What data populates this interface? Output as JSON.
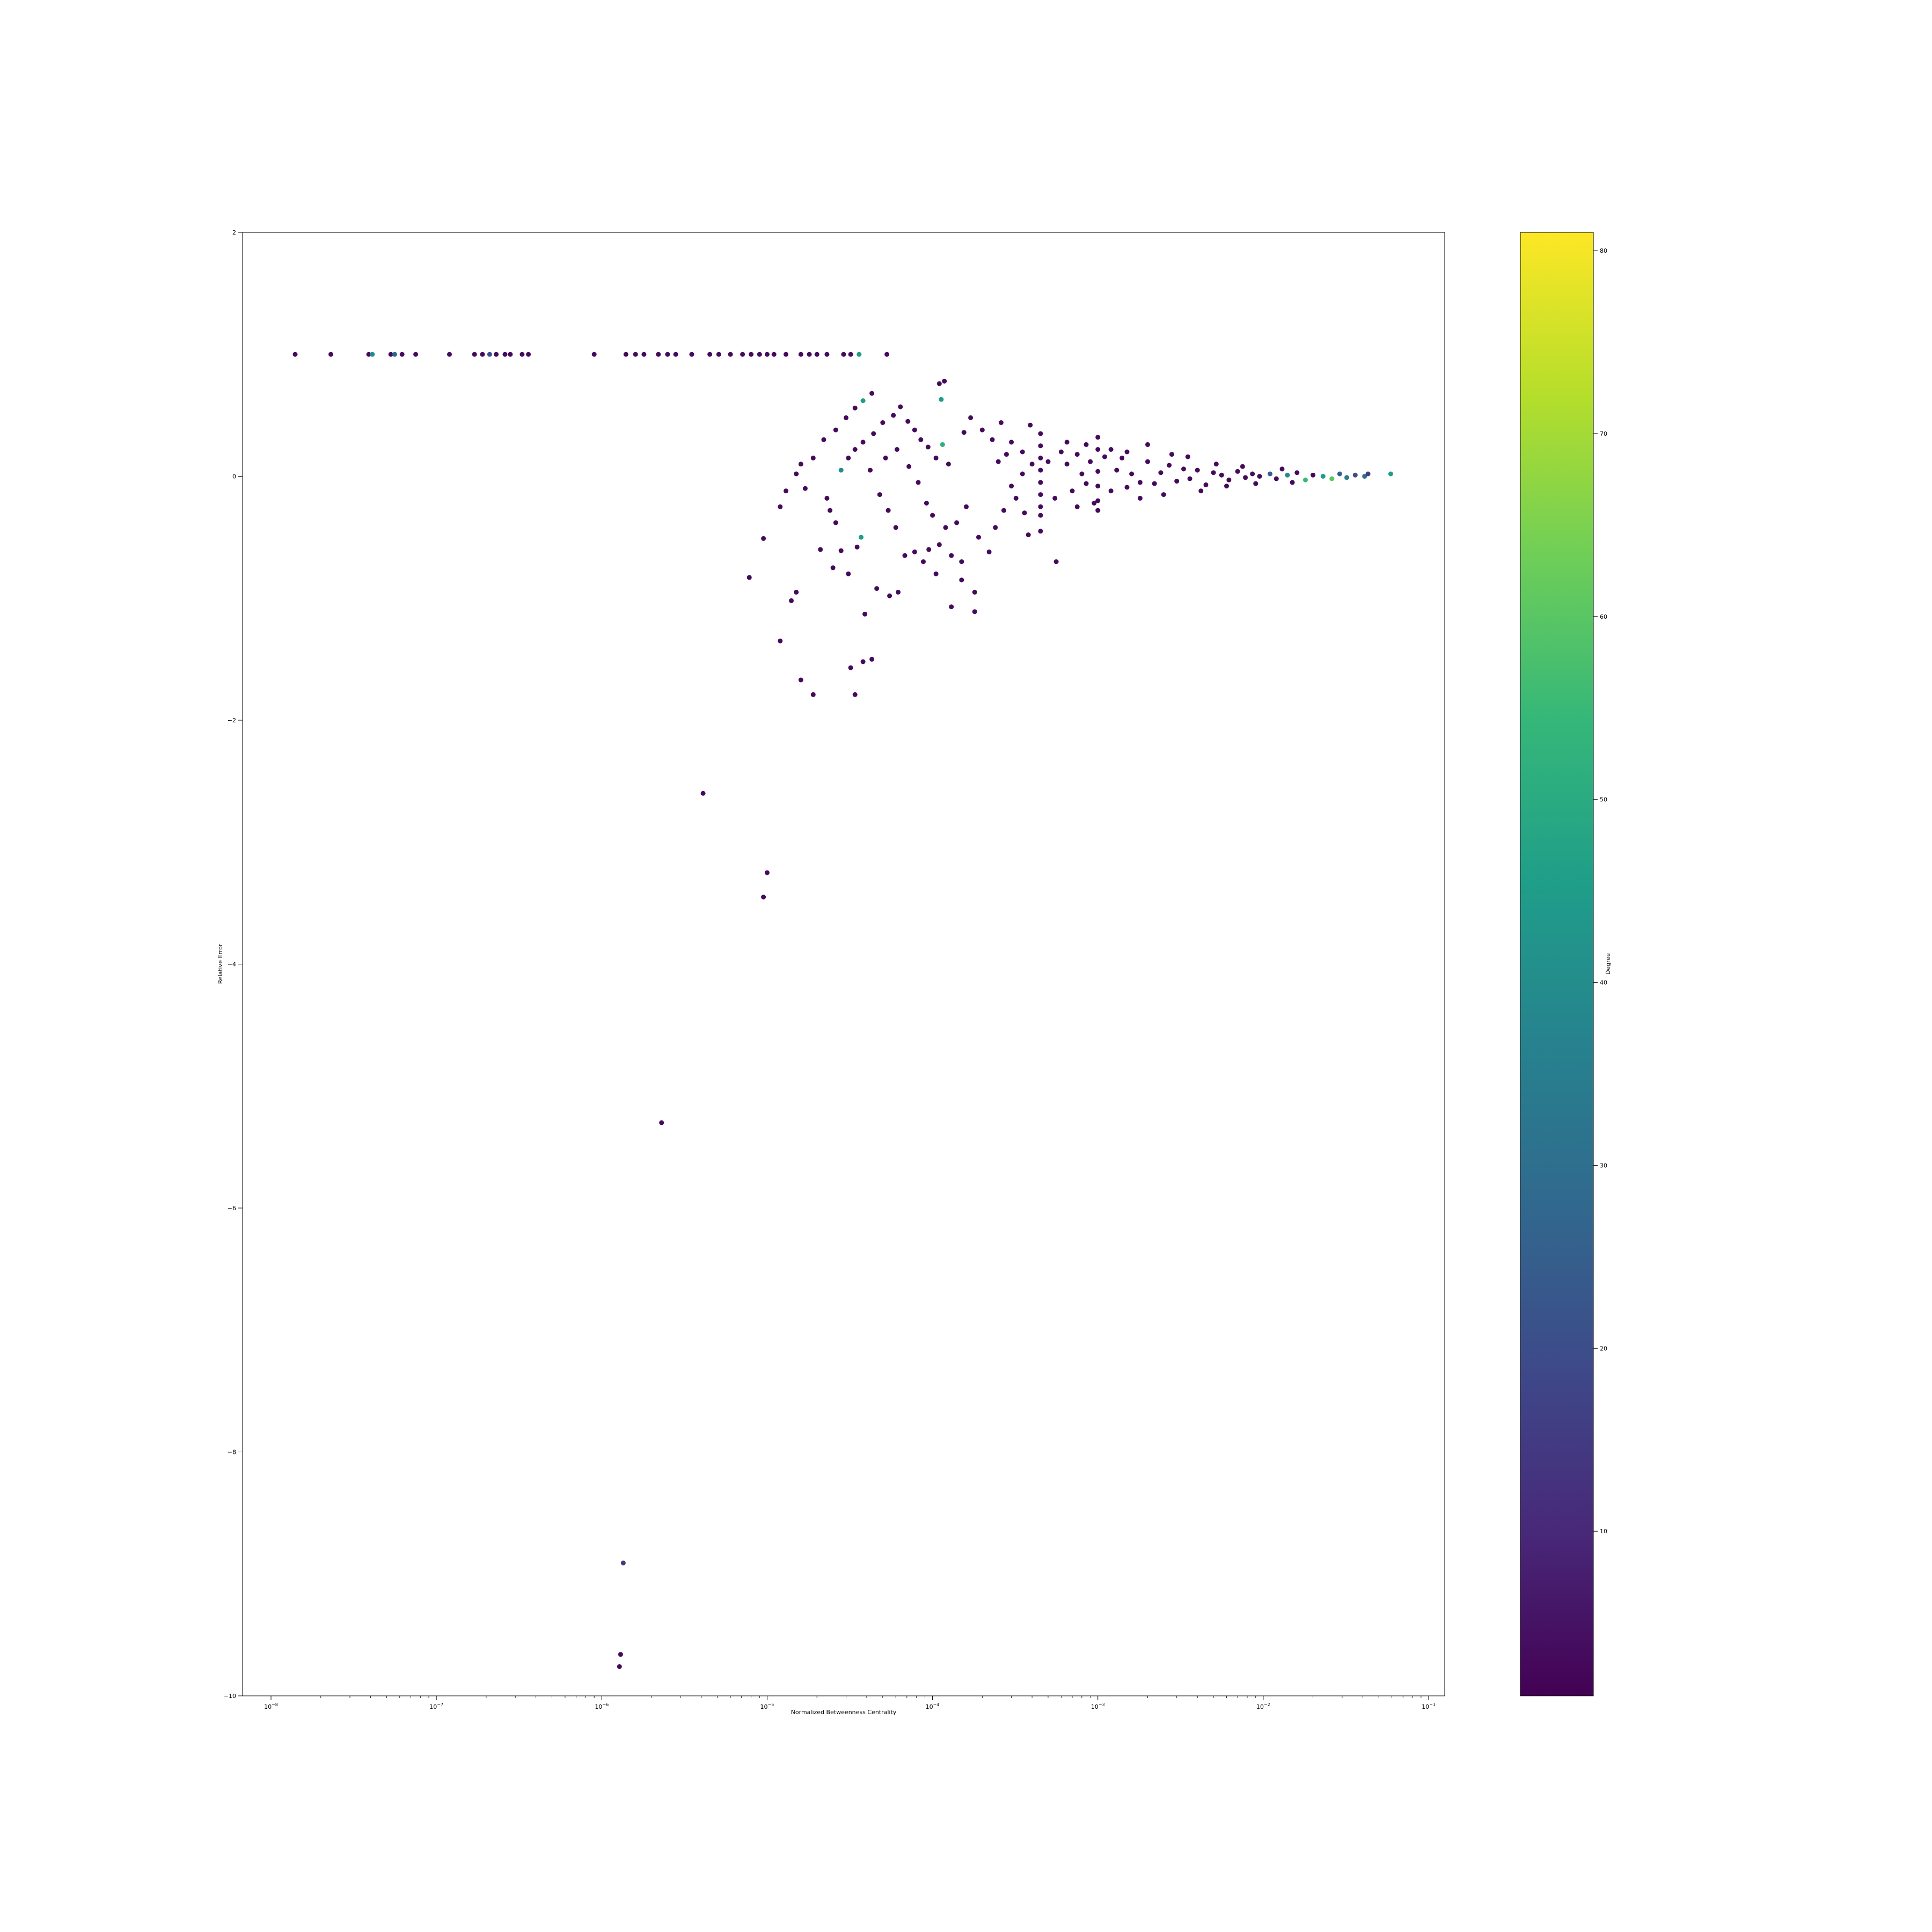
{
  "chart_data": {
    "type": "scatter",
    "title": "",
    "xlabel": "Normalized Betweenness Centrality",
    "ylabel": "Relative Error",
    "colorbar_label": "Degree",
    "x_scale": "log",
    "xlim": [
      1e-08,
      0.1
    ],
    "ylim": [
      -10,
      2
    ],
    "x_ticks": [
      {
        "value": 1e-08,
        "base": "10",
        "exp": "−8"
      },
      {
        "value": 1e-07,
        "base": "10",
        "exp": "−7"
      },
      {
        "value": 1e-06,
        "base": "10",
        "exp": "−6"
      },
      {
        "value": 1e-05,
        "base": "10",
        "exp": "−5"
      },
      {
        "value": 0.0001,
        "base": "10",
        "exp": "−4"
      },
      {
        "value": 0.001,
        "base": "10",
        "exp": "−3"
      },
      {
        "value": 0.01,
        "base": "10",
        "exp": "−2"
      },
      {
        "value": 0.1,
        "base": "10",
        "exp": "−1"
      }
    ],
    "y_ticks": [
      {
        "value": 2,
        "label": "2"
      },
      {
        "value": 0,
        "label": "0"
      },
      {
        "value": -2,
        "label": "−2"
      },
      {
        "value": -4,
        "label": "−4"
      },
      {
        "value": -6,
        "label": "−6"
      },
      {
        "value": -8,
        "label": "−8"
      },
      {
        "value": -10,
        "label": "−10"
      }
    ],
    "colorbar": {
      "range": [
        1,
        81
      ],
      "colormap": "viridis",
      "ticks": [
        {
          "value": 10,
          "label": "10"
        },
        {
          "value": 20,
          "label": "20"
        },
        {
          "value": 30,
          "label": "30"
        },
        {
          "value": 40,
          "label": "40"
        },
        {
          "value": 50,
          "label": "50"
        },
        {
          "value": 60,
          "label": "60"
        },
        {
          "value": 70,
          "label": "70"
        },
        {
          "value": 80,
          "label": "80"
        }
      ],
      "stops": [
        "#440154",
        "#482878",
        "#3e4989",
        "#31688e",
        "#26828e",
        "#1f9e89",
        "#35b779",
        "#6ece58",
        "#b5de2b",
        "#fde725"
      ]
    },
    "point_fill_hint": "purple-dominant, a few teal/green high-degree points",
    "points": [
      [
        1.4e-08,
        1.0,
        3
      ],
      [
        2.3e-08,
        1.0,
        3
      ],
      [
        3.9e-08,
        1.0,
        3
      ],
      [
        4.1e-08,
        1.0,
        40
      ],
      [
        5.3e-08,
        1.0,
        3
      ],
      [
        5.6e-08,
        1.0,
        28
      ],
      [
        6.2e-08,
        1.0,
        3
      ],
      [
        7.5e-08,
        1.0,
        3
      ],
      [
        1.2e-07,
        1.0,
        3
      ],
      [
        1.7e-07,
        1.0,
        3
      ],
      [
        1.9e-07,
        1.0,
        3
      ],
      [
        2.1e-07,
        1.0,
        20
      ],
      [
        2.3e-07,
        1.0,
        3
      ],
      [
        2.6e-07,
        1.0,
        3
      ],
      [
        2.8e-07,
        1.0,
        3
      ],
      [
        3.3e-07,
        1.0,
        3
      ],
      [
        3.6e-07,
        1.0,
        3
      ],
      [
        9e-07,
        1.0,
        3
      ],
      [
        1.4e-06,
        1.0,
        3
      ],
      [
        1.6e-06,
        1.0,
        3
      ],
      [
        1.8e-06,
        1.0,
        3
      ],
      [
        2.2e-06,
        1.0,
        3
      ],
      [
        2.5e-06,
        1.0,
        3
      ],
      [
        2.8e-06,
        1.0,
        3
      ],
      [
        3.5e-06,
        1.0,
        3
      ],
      [
        4.5e-06,
        1.0,
        3
      ],
      [
        5.1e-06,
        1.0,
        3
      ],
      [
        6e-06,
        1.0,
        3
      ],
      [
        7.1e-06,
        1.0,
        3
      ],
      [
        8e-06,
        1.0,
        3
      ],
      [
        9e-06,
        1.0,
        3
      ],
      [
        1e-05,
        1.0,
        3
      ],
      [
        1.1e-05,
        1.0,
        3
      ],
      [
        1.3e-05,
        1.0,
        3
      ],
      [
        1.6e-05,
        1.0,
        3
      ],
      [
        1.8e-05,
        1.0,
        3
      ],
      [
        2e-05,
        1.0,
        3
      ],
      [
        2.3e-05,
        1.0,
        3
      ],
      [
        2.9e-05,
        1.0,
        3
      ],
      [
        3.2e-05,
        1.0,
        3
      ],
      [
        3.6e-05,
        1.0,
        45
      ],
      [
        5.3e-05,
        1.0,
        3
      ],
      [
        2.6e-05,
        0.38,
        3
      ],
      [
        3e-05,
        0.48,
        3
      ],
      [
        3.4e-05,
        0.56,
        3
      ],
      [
        3.8e-05,
        0.62,
        45
      ],
      [
        4.3e-05,
        0.68,
        3
      ],
      [
        2.2e-05,
        0.3,
        3
      ],
      [
        1.9e-05,
        0.15,
        3
      ],
      [
        1.6e-05,
        0.1,
        3
      ],
      [
        1.5e-05,
        0.02,
        3
      ],
      [
        1.3e-05,
        -0.12,
        3
      ],
      [
        1.2e-05,
        -0.25,
        3
      ],
      [
        9.5e-06,
        -0.51,
        3
      ],
      [
        7.8e-06,
        -0.83,
        3
      ],
      [
        1.5e-05,
        -0.95,
        3
      ],
      [
        1.4e-05,
        -1.02,
        3
      ],
      [
        1.2e-05,
        -1.35,
        3
      ],
      [
        1.6e-05,
        -1.67,
        3
      ],
      [
        1.9e-05,
        -1.79,
        3
      ],
      [
        3.4e-05,
        -1.79,
        3
      ],
      [
        3.2e-05,
        -1.57,
        3
      ],
      [
        3.8e-05,
        -1.52,
        3
      ],
      [
        4.3e-05,
        -1.5,
        3
      ],
      [
        3.9e-05,
        -1.13,
        3
      ],
      [
        4.6e-05,
        -0.92,
        3
      ],
      [
        3.7e-05,
        -0.5,
        45
      ],
      [
        3.5e-05,
        -0.58,
        3
      ],
      [
        3.1e-05,
        -0.8,
        3
      ],
      [
        2.8e-05,
        -0.61,
        3
      ],
      [
        2.6e-05,
        -0.38,
        3
      ],
      [
        2.3e-05,
        -0.18,
        3
      ],
      [
        2.8e-05,
        0.05,
        40
      ],
      [
        3.1e-05,
        0.15,
        3
      ],
      [
        3.4e-05,
        0.22,
        3
      ],
      [
        3.8e-05,
        0.28,
        3
      ],
      [
        4.4e-05,
        0.35,
        3
      ],
      [
        5e-05,
        0.44,
        3
      ],
      [
        5.8e-05,
        0.5,
        3
      ],
      [
        6.4e-05,
        0.57,
        3
      ],
      [
        7.1e-05,
        0.45,
        3
      ],
      [
        7.8e-05,
        0.38,
        3
      ],
      [
        8.5e-05,
        0.3,
        3
      ],
      [
        9.4e-05,
        0.24,
        3
      ],
      [
        0.000105,
        0.15,
        3
      ],
      [
        0.000115,
        0.26,
        52
      ],
      [
        0.000125,
        0.1,
        3
      ],
      [
        0.00011,
        0.76,
        3
      ],
      [
        0.000118,
        0.78,
        3
      ],
      [
        0.000113,
        0.63,
        45
      ],
      [
        0.00013,
        -1.07,
        3
      ],
      [
        0.00018,
        -1.11,
        3
      ],
      [
        0.00018,
        -0.95,
        3
      ],
      [
        0.00015,
        -0.85,
        3
      ],
      [
        0.00015,
        -0.7,
        3
      ],
      [
        0.00013,
        -0.65,
        3
      ],
      [
        0.00011,
        -0.56,
        3
      ],
      [
        9.5e-05,
        -0.6,
        3
      ],
      [
        7.8e-05,
        -0.62,
        3
      ],
      [
        6.8e-05,
        -0.65,
        3
      ],
      [
        6e-05,
        -0.42,
        3
      ],
      [
        5.4e-05,
        -0.28,
        3
      ],
      [
        4.8e-05,
        -0.15,
        3
      ],
      [
        4.2e-05,
        0.05,
        3
      ],
      [
        5.2e-05,
        0.15,
        3
      ],
      [
        6.1e-05,
        0.22,
        3
      ],
      [
        7.2e-05,
        0.08,
        3
      ],
      [
        8.2e-05,
        -0.05,
        3
      ],
      [
        9.2e-05,
        -0.22,
        3
      ],
      [
        0.0001,
        -0.32,
        3
      ],
      [
        0.00012,
        -0.42,
        3
      ],
      [
        0.00014,
        -0.38,
        3
      ],
      [
        0.00016,
        -0.25,
        3
      ],
      [
        0.00019,
        -0.5,
        3
      ],
      [
        0.00022,
        -0.62,
        3
      ],
      [
        0.00024,
        -0.42,
        3
      ],
      [
        0.0002,
        0.38,
        3
      ],
      [
        0.00023,
        0.3,
        3
      ],
      [
        0.00026,
        0.44,
        3
      ],
      [
        0.00028,
        0.18,
        3
      ],
      [
        0.0003,
        -0.08,
        3
      ],
      [
        0.00032,
        -0.18,
        3
      ],
      [
        0.00035,
        0.02,
        3
      ],
      [
        0.00038,
        -0.48,
        3
      ],
      [
        0.00056,
        -0.7,
        3
      ],
      [
        0.0006,
        0.2,
        3
      ],
      [
        0.00065,
        0.1,
        3
      ],
      [
        0.0007,
        -0.12,
        3
      ],
      [
        0.00075,
        0.18,
        3
      ],
      [
        0.0008,
        0.02,
        3
      ],
      [
        0.00085,
        -0.06,
        3
      ],
      [
        0.0009,
        0.12,
        3
      ],
      [
        0.001,
        0.04,
        3
      ],
      [
        0.001,
        -0.08,
        3
      ],
      [
        0.0011,
        0.16,
        3
      ],
      [
        0.0012,
        -0.12,
        3
      ],
      [
        0.0013,
        0.05,
        3
      ],
      [
        0.0014,
        0.15,
        3
      ],
      [
        0.0015,
        -0.09,
        3
      ],
      [
        0.0016,
        0.02,
        3
      ],
      [
        0.0018,
        -0.05,
        3
      ],
      [
        0.002,
        0.12,
        3
      ],
      [
        0.0022,
        -0.06,
        3
      ],
      [
        0.0024,
        0.03,
        3
      ],
      [
        0.0027,
        0.09,
        3
      ],
      [
        0.003,
        -0.04,
        3
      ],
      [
        0.0033,
        0.06,
        3
      ],
      [
        0.0036,
        -0.02,
        3
      ],
      [
        0.004,
        0.05,
        3
      ],
      [
        0.0045,
        -0.07,
        3
      ],
      [
        0.005,
        0.03,
        3
      ],
      [
        0.0056,
        0.01,
        3
      ],
      [
        0.0062,
        -0.03,
        3
      ],
      [
        0.007,
        0.04,
        3
      ],
      [
        0.0078,
        -0.01,
        3
      ],
      [
        0.0086,
        0.02,
        3
      ],
      [
        0.0095,
        0.0,
        3
      ],
      [
        0.011,
        0.02,
        25
      ],
      [
        0.012,
        -0.02,
        3
      ],
      [
        0.014,
        0.01,
        40
      ],
      [
        0.016,
        0.03,
        3
      ],
      [
        0.018,
        -0.03,
        55
      ],
      [
        0.02,
        0.01,
        3
      ],
      [
        0.023,
        0.0,
        45
      ],
      [
        0.026,
        -0.02,
        60
      ],
      [
        0.029,
        0.02,
        25
      ],
      [
        0.032,
        -0.01,
        35
      ],
      [
        0.036,
        0.01,
        20
      ],
      [
        0.041,
        0.0,
        30
      ],
      [
        0.043,
        0.02,
        15
      ],
      [
        0.059,
        0.02,
        45
      ],
      [
        4.1e-06,
        -2.6,
        3
      ],
      [
        1e-05,
        -3.25,
        3
      ],
      [
        9.5e-06,
        -3.45,
        3
      ],
      [
        2.3e-06,
        -5.3,
        3
      ],
      [
        1.35e-06,
        -8.91,
        15
      ],
      [
        1.3e-06,
        -9.66,
        3
      ],
      [
        1.28e-06,
        -9.76,
        3
      ],
      [
        0.0003,
        0.28,
        3
      ],
      [
        0.00035,
        0.2,
        3
      ],
      [
        0.0004,
        0.1,
        3
      ],
      [
        0.00045,
        0.35,
        3
      ],
      [
        0.00045,
        0.25,
        3
      ],
      [
        0.00045,
        0.15,
        3
      ],
      [
        0.00045,
        0.05,
        3
      ],
      [
        0.00045,
        -0.05,
        3
      ],
      [
        0.00045,
        -0.15,
        3
      ],
      [
        0.00045,
        -0.25,
        3
      ],
      [
        0.00045,
        -0.32,
        3
      ],
      [
        0.00045,
        -0.45,
        3
      ],
      [
        0.001,
        0.32,
        3
      ],
      [
        0.001,
        0.22,
        3
      ],
      [
        0.001,
        -0.2,
        3
      ],
      [
        0.001,
        -0.28,
        3
      ],
      [
        0.0005,
        0.12,
        3
      ],
      [
        0.00055,
        -0.18,
        3
      ],
      [
        0.00065,
        0.28,
        3
      ],
      [
        0.00075,
        -0.25,
        3
      ],
      [
        0.00085,
        0.26,
        3
      ],
      [
        0.00095,
        -0.22,
        3
      ],
      [
        0.0012,
        0.22,
        3
      ],
      [
        0.0015,
        0.2,
        3
      ],
      [
        0.0018,
        -0.18,
        3
      ],
      [
        0.002,
        0.26,
        3
      ],
      [
        0.0025,
        -0.15,
        3
      ],
      [
        0.0028,
        0.18,
        3
      ],
      [
        0.0035,
        0.16,
        3
      ],
      [
        0.0042,
        -0.12,
        3
      ],
      [
        0.0052,
        0.1,
        3
      ],
      [
        0.006,
        -0.08,
        3
      ],
      [
        0.0075,
        0.08,
        3
      ],
      [
        0.009,
        -0.06,
        3
      ],
      [
        0.013,
        0.06,
        3
      ],
      [
        0.015,
        -0.05,
        3
      ],
      [
        0.00017,
        0.48,
        3
      ],
      [
        0.000155,
        0.36,
        3
      ],
      [
        0.00025,
        0.12,
        3
      ],
      [
        0.00027,
        -0.28,
        3
      ],
      [
        0.00039,
        0.42,
        3
      ],
      [
        0.00036,
        -0.3,
        3
      ],
      [
        6.2e-05,
        -0.95,
        3
      ],
      [
        5.5e-05,
        -0.98,
        3
      ],
      [
        8.8e-05,
        -0.7,
        3
      ],
      [
        0.000105,
        -0.8,
        3
      ],
      [
        2.4e-05,
        -0.28,
        3
      ],
      [
        1.7e-05,
        -0.1,
        3
      ],
      [
        2.1e-05,
        -0.6,
        3
      ],
      [
        2.5e-05,
        -0.75,
        3
      ]
    ]
  }
}
